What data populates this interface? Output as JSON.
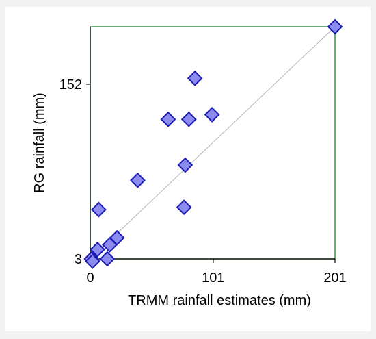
{
  "chart_data": {
    "type": "scatter",
    "title": "",
    "xlabel": "TRMM rainfall estimates (mm)",
    "ylabel": "RG rainfall (mm)",
    "xlim": [
      0,
      201
    ],
    "ylim": [
      3,
      201
    ],
    "x_ticks": [
      "0",
      "101",
      "201"
    ],
    "x_tick_values": [
      0,
      101,
      201
    ],
    "y_ticks": [
      "3",
      "152"
    ],
    "y_tick_values": [
      3,
      152
    ],
    "grid": false,
    "legend": "none",
    "reference_line": {
      "from": [
        0,
        3
      ],
      "to": [
        201,
        201
      ]
    },
    "colors": {
      "frame": "#2e9a4a",
      "marker_fill": "#8c8cf0",
      "marker_edge": "#1c1cb4",
      "reference_line": "#b4b4b4"
    },
    "series": [
      {
        "points": [
          [
            201,
            201
          ],
          [
            86,
            157
          ],
          [
            100,
            126
          ],
          [
            64,
            122
          ],
          [
            81,
            122
          ],
          [
            78,
            83
          ],
          [
            39,
            70
          ],
          [
            77,
            47
          ],
          [
            7,
            45
          ],
          [
            22,
            21
          ],
          [
            16,
            15
          ],
          [
            6,
            11
          ],
          [
            1,
            3
          ],
          [
            14,
            3
          ],
          [
            2,
            1
          ]
        ]
      }
    ]
  }
}
